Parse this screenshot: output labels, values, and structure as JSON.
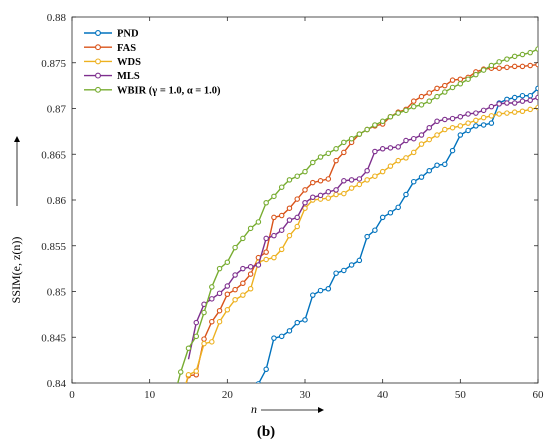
{
  "chart_data": {
    "type": "line",
    "title": "",
    "xlabel": "n",
    "ylabel": "SSIM(e, z(n))",
    "caption": "(b)",
    "xlim": [
      0,
      60
    ],
    "ylim": [
      0.84,
      0.88
    ],
    "x_ticks": [
      "0",
      "10",
      "20",
      "30",
      "40",
      "50",
      "60"
    ],
    "y_ticks": [
      "0.84",
      "0.845",
      "0.85",
      "0.855",
      "0.86",
      "0.865",
      "0.87",
      "0.875",
      "0.88"
    ],
    "grid": false,
    "legend_position": "top-left",
    "x": [
      14,
      15,
      16,
      17,
      18,
      19,
      20,
      21,
      22,
      23,
      24,
      25,
      26,
      27,
      28,
      29,
      30,
      31,
      32,
      33,
      34,
      35,
      36,
      37,
      38,
      39,
      40,
      41,
      42,
      43,
      44,
      45,
      46,
      47,
      48,
      49,
      50,
      51,
      52,
      53,
      54,
      55,
      56,
      57,
      58,
      59,
      60
    ],
    "series": [
      {
        "name": "PND",
        "color": "#0072BD",
        "values": [
          null,
          null,
          null,
          null,
          null,
          null,
          null,
          null,
          null,
          null,
          0.8399,
          0.8415,
          0.8449,
          0.8451,
          0.8457,
          0.8466,
          0.8469,
          0.8496,
          0.8501,
          0.8503,
          0.852,
          0.8523,
          0.8529,
          0.8534,
          0.856,
          0.8567,
          0.8581,
          0.8586,
          0.8592,
          0.8606,
          0.862,
          0.8625,
          0.8632,
          0.8638,
          0.8639,
          0.8654,
          0.8671,
          0.8676,
          0.8681,
          0.8682,
          0.8684,
          0.8706,
          0.871,
          0.8712,
          0.8714,
          0.8714,
          0.8722
        ]
      },
      {
        "name": "FAS",
        "color": "#D95319",
        "values": [
          null,
          0.8408,
          0.8409,
          0.8448,
          0.8467,
          0.8479,
          0.8497,
          0.8502,
          0.8509,
          0.8519,
          0.8537,
          0.8543,
          0.8581,
          0.8583,
          0.8591,
          0.8601,
          0.8611,
          0.8619,
          0.8621,
          0.8623,
          0.8643,
          0.8652,
          0.8663,
          0.8672,
          0.8677,
          0.8681,
          0.8683,
          0.8691,
          0.8696,
          0.8699,
          0.8708,
          0.8713,
          0.8717,
          0.8722,
          0.8725,
          0.8731,
          0.8732,
          0.8734,
          0.874,
          0.8743,
          0.8744,
          0.8744,
          0.8745,
          0.8746,
          0.8746,
          0.8747,
          0.8748
        ]
      },
      {
        "name": "WDS",
        "color": "#EDB120",
        "values": [
          null,
          0.8409,
          0.8413,
          0.8443,
          0.8445,
          0.8467,
          0.848,
          0.8491,
          0.8496,
          0.8503,
          0.8532,
          0.8535,
          0.8537,
          0.8546,
          0.8561,
          0.8571,
          0.8591,
          0.86,
          0.8601,
          0.8602,
          0.8606,
          0.8607,
          0.8613,
          0.8617,
          0.8622,
          0.8626,
          0.8631,
          0.8637,
          0.8643,
          0.8646,
          0.8652,
          0.8661,
          0.8666,
          0.8671,
          0.8677,
          0.8679,
          0.8681,
          0.8684,
          0.8687,
          0.869,
          0.8692,
          0.8694,
          0.8695,
          0.8696,
          0.8697,
          0.8699,
          0.8701
        ]
      },
      {
        "name": "MLS",
        "color": "#7E2F8E",
        "values": [
          null,
          null,
          0.8466,
          0.8486,
          0.8492,
          0.8498,
          0.8506,
          0.8518,
          0.8525,
          0.8527,
          0.8529,
          0.8558,
          0.8561,
          0.8567,
          0.8578,
          0.8581,
          0.8597,
          0.8603,
          0.8605,
          0.8609,
          0.8611,
          0.8621,
          0.8622,
          0.8623,
          0.8632,
          0.8653,
          0.8656,
          0.8657,
          0.8658,
          0.8665,
          0.8667,
          0.8671,
          0.8679,
          0.8686,
          0.8688,
          0.8689,
          0.8691,
          0.8694,
          0.8695,
          0.8698,
          0.8702,
          0.8705,
          0.8706,
          0.8706,
          0.8708,
          0.8709,
          0.8712
        ]
      },
      {
        "name": "WBIR (γ = 1.0, α = 1.0)",
        "color": "#77AC30",
        "values": [
          0.8412,
          0.8438,
          0.8451,
          0.8477,
          0.8505,
          0.8525,
          0.8532,
          0.8548,
          0.8558,
          0.8569,
          0.8576,
          0.8597,
          0.8604,
          0.8614,
          0.8622,
          0.8626,
          0.8631,
          0.8641,
          0.8647,
          0.8651,
          0.8656,
          0.8663,
          0.8667,
          0.8672,
          0.8677,
          0.8682,
          0.8686,
          0.8691,
          0.8695,
          0.8698,
          0.8702,
          0.8704,
          0.8708,
          0.8713,
          0.8718,
          0.8723,
          0.8727,
          0.8732,
          0.8737,
          0.8742,
          0.8747,
          0.8751,
          0.8754,
          0.8757,
          0.8759,
          0.8761,
          0.8765
        ]
      }
    ]
  }
}
